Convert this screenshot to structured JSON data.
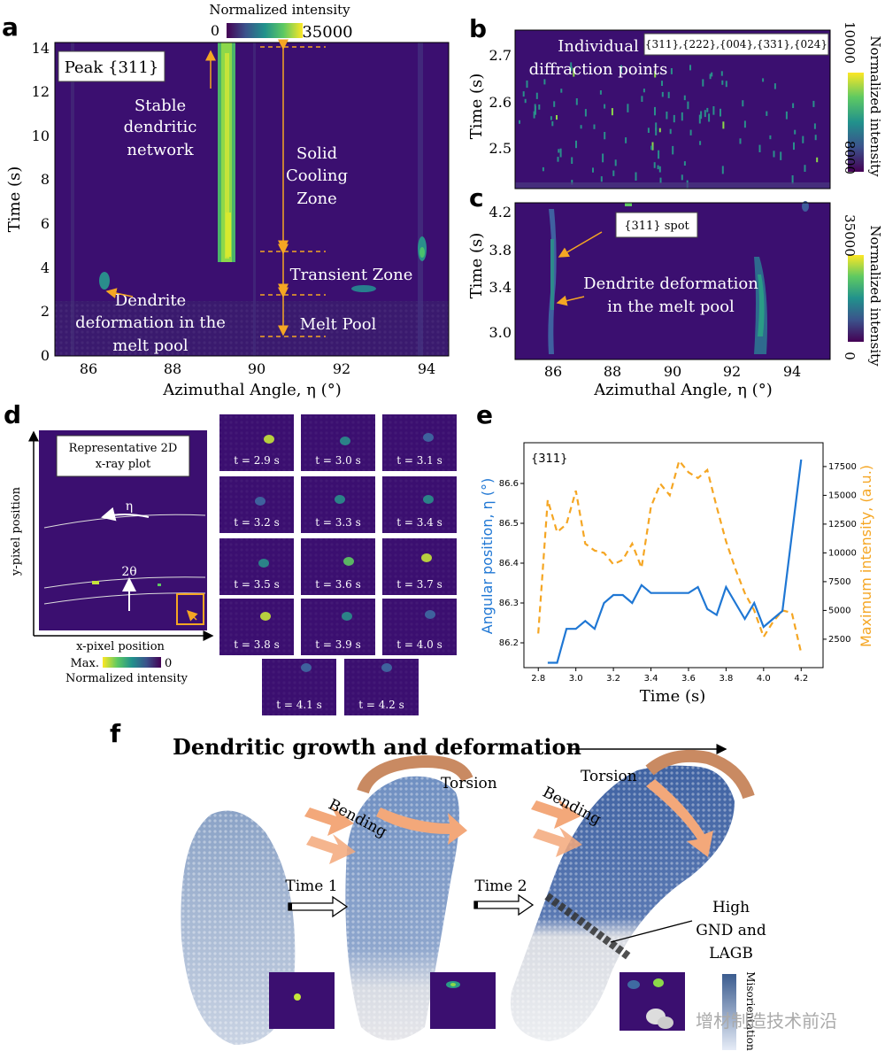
{
  "colors": {
    "bg_dark": "#3b0f70",
    "viridis_mid": "#21918c",
    "viridis_bright": "#5ec962",
    "viridis_yellow": "#fde725",
    "annotation": "#f5a623",
    "blue_line": "#1f77d4",
    "orange_line": "#f5a623",
    "arrow_fill": "#f3a87a",
    "torsion": "#c98a62"
  },
  "panel_a": {
    "letter": "a",
    "colorbar_title": "Normalized intensity",
    "colorbar_min": "0",
    "colorbar_max": "35000",
    "peak_label": "Peak {311}",
    "ylabel": "Time (s)",
    "xlabel": "Azimuthal Angle, η (°)",
    "yticks": [
      "0",
      "2",
      "4",
      "6",
      "8",
      "10",
      "12",
      "14"
    ],
    "xticks": [
      "86",
      "88",
      "90",
      "92",
      "94"
    ],
    "ann_stable_1": "Stable",
    "ann_stable_2": "dendritic",
    "ann_stable_3": "network",
    "ann_solid_1": "Solid",
    "ann_solid_2": "Cooling",
    "ann_solid_3": "Zone",
    "ann_transient": "Transient Zone",
    "ann_melt": "Melt Pool",
    "ann_dendrite_1": "Dendrite",
    "ann_dendrite_2": "deformation in the",
    "ann_dendrite_3": "melt pool"
  },
  "panel_b": {
    "letter": "b",
    "ylabel": "Time (s)",
    "yticks": [
      "2.5",
      "2.6",
      "2.7"
    ],
    "box_label": "{311},{222},{004},{331},{024}",
    "ann_1": "Individual",
    "ann_2": "diffraction points",
    "cb_max": "10000",
    "cb_min": "8000",
    "cb_title": "Normalized intensity"
  },
  "panel_c": {
    "letter": "c",
    "ylabel": "Time (s)",
    "yticks": [
      "3.0",
      "3.4",
      "3.8",
      "4.2"
    ],
    "xticks": [
      "86",
      "88",
      "90",
      "92",
      "94"
    ],
    "xlabel": "Azimuthal Angle, η (°)",
    "spot_label": "{311} spot",
    "ann_1": "Dendrite deformation",
    "ann_2": "in the melt pool",
    "cb_max": "35000",
    "cb_min": "0",
    "cb_title": "Normalized intensity"
  },
  "panel_d": {
    "letter": "d",
    "plot_title_1": "Representative 2D",
    "plot_title_2": "x-ray plot",
    "eta": "η",
    "two_theta": "2θ",
    "ylabel": "y-pixel position",
    "xlabel": "x-pixel position",
    "cb_max": "Max.",
    "cb_min": "0",
    "cb_title": "Normalized intensity",
    "frames": [
      "t = 2.9 s",
      "t = 3.0 s",
      "t = 3.1 s",
      "t = 3.2 s",
      "t = 3.3 s",
      "t = 3.4 s",
      "t = 3.5 s",
      "t = 3.6 s",
      "t = 3.7 s",
      "t = 3.8 s",
      "t = 3.9 s",
      "t = 4.0 s",
      "t = 4.1 s",
      "t = 4.2 s"
    ]
  },
  "panel_e": {
    "letter": "e",
    "inner_label": "{311}",
    "xlabel": "Time (s)",
    "ylabel_left": "Angular position, η (°)",
    "ylabel_right": "Maximum intensity, (a.u.)",
    "xticks": [
      "2.8",
      "3.0",
      "3.2",
      "3.4",
      "3.6",
      "3.8",
      "4.0",
      "4.2"
    ],
    "yticks_left": [
      "86.2",
      "86.3",
      "86.4",
      "86.5",
      "86.6"
    ],
    "yticks_right": [
      "2500",
      "5000",
      "7500",
      "10000",
      "12500",
      "15000",
      "17500"
    ]
  },
  "panel_f": {
    "letter": "f",
    "title": "Dendritic growth and deformation",
    "bending": "Bending",
    "torsion": "Torsion",
    "time1": "Time 1",
    "time2": "Time 2",
    "high_1": "High",
    "high_2": "GND and",
    "high_3": "LAGB",
    "cb_title": "Misorientation",
    "watermark": "增材制造技术前沿"
  },
  "chart_data": {
    "type": "line",
    "title": "",
    "xlabel": "Time (s)",
    "xlim": [
      2.78,
      4.26
    ],
    "series": [
      {
        "name": "Angular position, η (°)",
        "axis": "left",
        "ylim": [
          86.16,
          86.68
        ],
        "x": [
          2.85,
          2.9,
          2.95,
          3.0,
          3.05,
          3.1,
          3.15,
          3.2,
          3.25,
          3.3,
          3.35,
          3.4,
          3.45,
          3.5,
          3.55,
          3.6,
          3.65,
          3.7,
          3.75,
          3.8,
          3.85,
          3.9,
          3.95,
          4.0,
          4.05,
          4.1,
          4.2
        ],
        "y": [
          86.15,
          86.15,
          86.235,
          86.235,
          86.255,
          86.235,
          86.3,
          86.32,
          86.32,
          86.3,
          86.345,
          86.325,
          86.325,
          86.325,
          86.325,
          86.325,
          86.34,
          86.285,
          86.27,
          86.34,
          86.3,
          86.26,
          86.3,
          86.24,
          86.26,
          86.28,
          86.66
        ]
      },
      {
        "name": "Maximum intensity, (a.u.)",
        "axis": "right",
        "style": "dashed",
        "ylim": [
          800,
          18800
        ],
        "x": [
          2.8,
          2.85,
          2.9,
          2.95,
          3.0,
          3.05,
          3.1,
          3.15,
          3.2,
          3.25,
          3.3,
          3.35,
          3.4,
          3.45,
          3.5,
          3.55,
          3.6,
          3.65,
          3.7,
          3.75,
          3.8,
          3.85,
          3.9,
          3.95,
          4.0,
          4.05,
          4.1,
          4.15,
          4.2
        ],
        "y": [
          3000,
          14600,
          11800,
          12500,
          15400,
          10800,
          10200,
          10000,
          9000,
          9400,
          10800,
          8700,
          14000,
          16000,
          15000,
          18000,
          17000,
          16500,
          17200,
          14000,
          11000,
          8600,
          6500,
          5000,
          2700,
          4000,
          5000,
          4800,
          1300
        ]
      }
    ]
  }
}
